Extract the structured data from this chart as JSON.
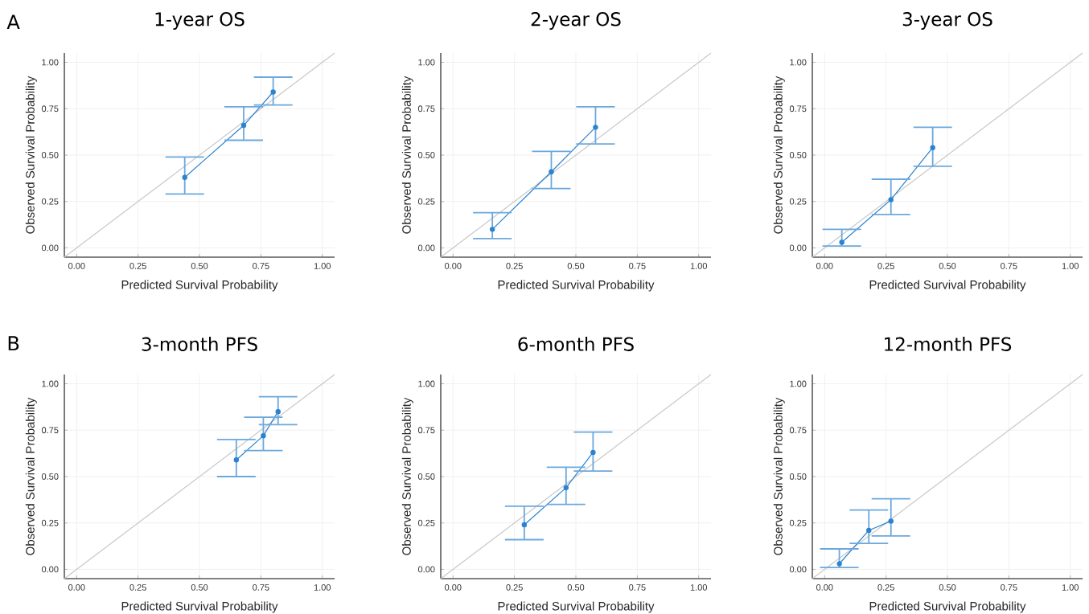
{
  "chart_data": [
    {
      "type": "line",
      "title": "1-year OS",
      "xlabel": "Predicted Survival Probability",
      "ylabel": "Observed Survival Probability",
      "annotations": [
        "A"
      ],
      "xlim": [
        -0.05,
        1.05
      ],
      "ylim": [
        -0.05,
        1.05
      ],
      "xticks": [
        {
          "value": 0,
          "label": "0.00"
        },
        {
          "value": 0.25,
          "label": "0.25"
        },
        {
          "value": 0.5,
          "label": "0.50"
        },
        {
          "value": 0.75,
          "label": "0.75"
        },
        {
          "value": 1,
          "label": "1.00"
        }
      ],
      "yticks": [
        {
          "value": 0,
          "label": "0.00"
        },
        {
          "value": 0.25,
          "label": "0.25"
        },
        {
          "value": 0.5,
          "label": "0.50"
        },
        {
          "value": 0.75,
          "label": "0.75"
        },
        {
          "value": 1,
          "label": "1.00"
        }
      ],
      "grid": true,
      "marker": "circle",
      "line_style": "solid",
      "series": [
        {
          "color": "#c8c8c8",
          "marker": "none",
          "x": [
            -0.05,
            1.05
          ],
          "values": [
            -0.05,
            1.05
          ]
        },
        {
          "color": "#2b83cf",
          "x": [
            0.44,
            0.68,
            0.8
          ],
          "values": [
            0.38,
            0.66,
            0.84
          ],
          "errors": [
            [
              0.29,
              0.49
            ],
            [
              0.58,
              0.76
            ],
            [
              0.77,
              0.92
            ]
          ]
        }
      ]
    },
    {
      "type": "line",
      "title": "2-year OS",
      "xlabel": "Predicted Survival Probability",
      "ylabel": "Observed Survival Probability",
      "xlim": [
        -0.05,
        1.05
      ],
      "ylim": [
        -0.05,
        1.05
      ],
      "xticks": [
        {
          "value": 0,
          "label": "0.00"
        },
        {
          "value": 0.25,
          "label": "0.25"
        },
        {
          "value": 0.5,
          "label": "0.50"
        },
        {
          "value": 0.75,
          "label": "0.75"
        },
        {
          "value": 1,
          "label": "1.00"
        }
      ],
      "yticks": [
        {
          "value": 0,
          "label": "0.00"
        },
        {
          "value": 0.25,
          "label": "0.25"
        },
        {
          "value": 0.5,
          "label": "0.50"
        },
        {
          "value": 0.75,
          "label": "0.75"
        },
        {
          "value": 1,
          "label": "1.00"
        }
      ],
      "grid": true,
      "marker": "circle",
      "line_style": "solid",
      "series": [
        {
          "color": "#c8c8c8",
          "marker": "none",
          "x": [
            -0.05,
            1.05
          ],
          "values": [
            -0.05,
            1.05
          ]
        },
        {
          "color": "#2b83cf",
          "x": [
            0.16,
            0.4,
            0.58
          ],
          "values": [
            0.1,
            0.41,
            0.65
          ],
          "errors": [
            [
              0.05,
              0.19
            ],
            [
              0.32,
              0.52
            ],
            [
              0.56,
              0.76
            ]
          ]
        }
      ]
    },
    {
      "type": "line",
      "title": "3-year OS",
      "xlabel": "Predicted Survival Probability",
      "ylabel": "Observed Survival Probability",
      "xlim": [
        -0.05,
        1.05
      ],
      "ylim": [
        -0.05,
        1.05
      ],
      "xticks": [
        {
          "value": 0,
          "label": "0.00"
        },
        {
          "value": 0.25,
          "label": "0.25"
        },
        {
          "value": 0.5,
          "label": "0.50"
        },
        {
          "value": 0.75,
          "label": "0.75"
        },
        {
          "value": 1,
          "label": "1.00"
        }
      ],
      "yticks": [
        {
          "value": 0,
          "label": "0.00"
        },
        {
          "value": 0.25,
          "label": "0.25"
        },
        {
          "value": 0.5,
          "label": "0.50"
        },
        {
          "value": 0.75,
          "label": "0.75"
        },
        {
          "value": 1,
          "label": "1.00"
        }
      ],
      "grid": true,
      "marker": "circle",
      "line_style": "solid",
      "series": [
        {
          "color": "#c8c8c8",
          "marker": "none",
          "x": [
            -0.05,
            1.05
          ],
          "values": [
            -0.05,
            1.05
          ]
        },
        {
          "color": "#2b83cf",
          "x": [
            0.07,
            0.27,
            0.44
          ],
          "values": [
            0.03,
            0.26,
            0.54
          ],
          "errors": [
            [
              0.01,
              0.1
            ],
            [
              0.18,
              0.37
            ],
            [
              0.44,
              0.65
            ]
          ]
        }
      ]
    },
    {
      "type": "line",
      "title": "3-month PFS",
      "xlabel": "Predicted Survival Probability",
      "ylabel": "Observed Survival Probability",
      "annotations": [
        "B"
      ],
      "xlim": [
        -0.05,
        1.05
      ],
      "ylim": [
        -0.05,
        1.05
      ],
      "xticks": [
        {
          "value": 0,
          "label": "0.00"
        },
        {
          "value": 0.25,
          "label": "0.25"
        },
        {
          "value": 0.5,
          "label": "0.50"
        },
        {
          "value": 0.75,
          "label": "0.75"
        },
        {
          "value": 1,
          "label": "1.00"
        }
      ],
      "yticks": [
        {
          "value": 0,
          "label": "0.00"
        },
        {
          "value": 0.25,
          "label": "0.25"
        },
        {
          "value": 0.5,
          "label": "0.50"
        },
        {
          "value": 0.75,
          "label": "0.75"
        },
        {
          "value": 1,
          "label": "1.00"
        }
      ],
      "grid": true,
      "marker": "circle",
      "line_style": "solid",
      "series": [
        {
          "color": "#c8c8c8",
          "marker": "none",
          "x": [
            -0.05,
            1.05
          ],
          "values": [
            -0.05,
            1.05
          ]
        },
        {
          "color": "#2b83cf",
          "x": [
            0.65,
            0.76,
            0.82
          ],
          "values": [
            0.59,
            0.72,
            0.85
          ],
          "errors": [
            [
              0.5,
              0.7
            ],
            [
              0.64,
              0.82
            ],
            [
              0.78,
              0.93
            ]
          ]
        }
      ]
    },
    {
      "type": "line",
      "title": "6-month PFS",
      "xlabel": "Predicted Survival Probability",
      "ylabel": "Observed Survival Probability",
      "xlim": [
        -0.05,
        1.05
      ],
      "ylim": [
        -0.05,
        1.05
      ],
      "xticks": [
        {
          "value": 0,
          "label": "0.00"
        },
        {
          "value": 0.25,
          "label": "0.25"
        },
        {
          "value": 0.5,
          "label": "0.50"
        },
        {
          "value": 0.75,
          "label": "0.75"
        },
        {
          "value": 1,
          "label": "1.00"
        }
      ],
      "yticks": [
        {
          "value": 0,
          "label": "0.00"
        },
        {
          "value": 0.25,
          "label": "0.25"
        },
        {
          "value": 0.5,
          "label": "0.50"
        },
        {
          "value": 0.75,
          "label": "0.75"
        },
        {
          "value": 1,
          "label": "1.00"
        }
      ],
      "grid": true,
      "marker": "circle",
      "line_style": "solid",
      "series": [
        {
          "color": "#c8c8c8",
          "marker": "none",
          "x": [
            -0.05,
            1.05
          ],
          "values": [
            -0.05,
            1.05
          ]
        },
        {
          "color": "#2b83cf",
          "x": [
            0.29,
            0.46,
            0.57
          ],
          "values": [
            0.24,
            0.44,
            0.63
          ],
          "errors": [
            [
              0.16,
              0.34
            ],
            [
              0.35,
              0.55
            ],
            [
              0.53,
              0.74
            ]
          ]
        }
      ]
    },
    {
      "type": "line",
      "title": "12-month PFS",
      "xlabel": "Predicted Survival Probability",
      "ylabel": "Observed Survival Probability",
      "xlim": [
        -0.05,
        1.05
      ],
      "ylim": [
        -0.05,
        1.05
      ],
      "xticks": [
        {
          "value": 0,
          "label": "0.00"
        },
        {
          "value": 0.25,
          "label": "0.25"
        },
        {
          "value": 0.5,
          "label": "0.50"
        },
        {
          "value": 0.75,
          "label": "0.75"
        },
        {
          "value": 1,
          "label": "1.00"
        }
      ],
      "yticks": [
        {
          "value": 0,
          "label": "0.00"
        },
        {
          "value": 0.25,
          "label": "0.25"
        },
        {
          "value": 0.5,
          "label": "0.50"
        },
        {
          "value": 0.75,
          "label": "0.75"
        },
        {
          "value": 1,
          "label": "1.00"
        }
      ],
      "grid": true,
      "marker": "circle",
      "line_style": "solid",
      "series": [
        {
          "color": "#c8c8c8",
          "marker": "none",
          "x": [
            -0.05,
            1.05
          ],
          "values": [
            -0.05,
            1.05
          ]
        },
        {
          "color": "#2b83cf",
          "x": [
            0.06,
            0.18,
            0.27
          ],
          "values": [
            0.03,
            0.21,
            0.26
          ],
          "errors": [
            [
              0.01,
              0.11
            ],
            [
              0.14,
              0.32
            ],
            [
              0.18,
              0.38
            ]
          ]
        }
      ]
    }
  ]
}
